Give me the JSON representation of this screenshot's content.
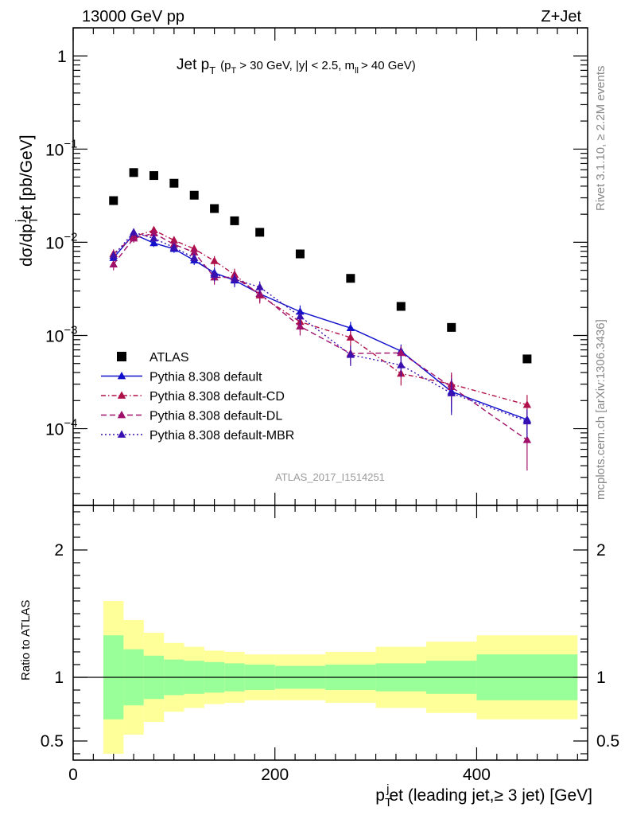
{
  "header": {
    "energy": "13000 GeV pp",
    "process": "Z+Jet",
    "rivet": "Rivet 3.1.10, ≥ 2.2M events",
    "mcplots": "mcplots.cern.ch [arXiv:1306.3436]",
    "analysis_id": "ATLAS_2017_I1514251"
  },
  "chart_data": [
    {
      "type": "scatter",
      "title_parts": {
        "main": "Jet p",
        "main_sub": "T",
        "cond_a": "(p",
        "cond_a_sub": "T",
        "cond_b": "> 30 GeV, |y| < 2.5, m",
        "cond_b_sub": "ll",
        "cond_c": "> 40 GeV)"
      },
      "ylabel": "dσ/dpᵀjet [pb/GeV]",
      "ylabel_parts": {
        "a": "dσ/dp",
        "sub": "T",
        "sup": "j",
        "b": "et [pb/GeV]"
      },
      "yscale": "log",
      "ylim": [
        1.5e-05,
        2
      ],
      "xlim": [
        0,
        510
      ],
      "yticks": [
        {
          "v": 1,
          "label": "1"
        },
        {
          "v": 0.1,
          "label": "10",
          "exp": "−1"
        },
        {
          "v": 0.01,
          "label": "10",
          "exp": "−2"
        },
        {
          "v": 0.001,
          "label": "10",
          "exp": "−3"
        },
        {
          "v": 0.0001,
          "label": "10",
          "exp": "−4"
        }
      ],
      "x": [
        40,
        60,
        80,
        100,
        120,
        140,
        160,
        185,
        225,
        275,
        325,
        375,
        450
      ],
      "series": [
        {
          "name": "ATLAS",
          "color": "#000000",
          "marker": "square",
          "dash": "none",
          "values": [
            0.028,
            0.056,
            0.052,
            0.043,
            0.032,
            0.023,
            0.017,
            0.0128,
            0.0075,
            0.0041,
            0.00205,
            0.00122,
            0.00056
          ]
        },
        {
          "name": "Pythia 8.308 default",
          "color": "#1010cc",
          "marker": "triangle",
          "dash": "none",
          "values": [
            0.0068,
            0.0122,
            0.0098,
            0.0085,
            0.0064,
            0.0047,
            0.0039,
            0.0028,
            0.0018,
            0.0012,
            0.00068,
            0.00025,
            0.000125
          ],
          "err": [
            0.0009,
            0.0012,
            0.0009,
            0.0008,
            0.0007,
            0.0007,
            0.0006,
            0.0005,
            0.0003,
            0.0002,
            0.00012,
            0.0001,
            4e-05
          ]
        },
        {
          "name": "Pythia 8.308 default-CD",
          "color": "#b0104a",
          "marker": "triangle",
          "dash": "6,3,1.5,3",
          "values": [
            0.0075,
            0.0115,
            0.0135,
            0.0105,
            0.0085,
            0.0063,
            0.0045,
            0.0027,
            0.0014,
            0.00095,
            0.00039,
            0.0003,
            0.00018
          ],
          "err": [
            0.0009,
            0.0012,
            0.0012,
            0.001,
            0.0009,
            0.0008,
            0.0007,
            0.0005,
            0.0003,
            0.00018,
            0.0001,
            0.0001,
            5e-05
          ]
        },
        {
          "name": "Pythia 8.308 default-DL",
          "color": "#a0106a",
          "marker": "triangle",
          "dash": "7,4",
          "values": [
            0.0058,
            0.011,
            0.0125,
            0.0095,
            0.0078,
            0.0042,
            0.0042,
            0.0028,
            0.00125,
            0.00064,
            0.00065,
            0.00028,
            7.55e-05
          ],
          "err": [
            0.0008,
            0.0011,
            0.0011,
            0.0009,
            0.0008,
            0.0007,
            0.0006,
            0.0005,
            0.00025,
            0.00015,
            0.00012,
            0.0001,
            4e-05
          ]
        },
        {
          "name": "Pythia 8.308 default-MBR",
          "color": "#3a10b0",
          "marker": "triangle",
          "dash": "2,3",
          "values": [
            0.0072,
            0.0128,
            0.011,
            0.0088,
            0.0068,
            0.0045,
            0.004,
            0.0033,
            0.0016,
            0.00062,
            0.00048,
            0.00024,
            0.00012
          ],
          "err": [
            0.0009,
            0.0012,
            0.001,
            0.0008,
            0.0007,
            0.0007,
            0.0006,
            0.0005,
            0.0003,
            0.00015,
            0.00012,
            0.0001,
            4e-05
          ]
        }
      ]
    },
    {
      "type": "area",
      "ylabel": "Ratio to ATLAS",
      "xlabel_parts": {
        "a": "p",
        "sub": "T",
        "sup": "j",
        "b": "et (leading jet,≥ 3 jet) [GeV]"
      },
      "ylim": [
        0.35,
        2.35
      ],
      "xlim": [
        0,
        510
      ],
      "yticks": [
        {
          "v": 0.5,
          "label": "0.5"
        },
        {
          "v": 1,
          "label": "1"
        },
        {
          "v": 2,
          "label": "2"
        }
      ],
      "xticks": [
        {
          "v": 0,
          "label": "0"
        },
        {
          "v": 200,
          "label": "200"
        },
        {
          "v": 400,
          "label": "400"
        }
      ],
      "bands": {
        "bins": [
          [
            30,
            50
          ],
          [
            50,
            70
          ],
          [
            70,
            90
          ],
          [
            90,
            110
          ],
          [
            110,
            130
          ],
          [
            130,
            150
          ],
          [
            150,
            170
          ],
          [
            170,
            200
          ],
          [
            200,
            250
          ],
          [
            250,
            300
          ],
          [
            300,
            350
          ],
          [
            350,
            400
          ],
          [
            400,
            500
          ]
        ],
        "inner": [
          0.33,
          0.22,
          0.17,
          0.14,
          0.13,
          0.12,
          0.11,
          0.1,
          0.09,
          0.1,
          0.11,
          0.13,
          0.18
        ],
        "outer": [
          0.6,
          0.45,
          0.35,
          0.27,
          0.24,
          0.21,
          0.2,
          0.18,
          0.18,
          0.2,
          0.24,
          0.28,
          0.33
        ],
        "inner_color": "#99ff99",
        "outer_color": "#ffff99"
      }
    }
  ]
}
